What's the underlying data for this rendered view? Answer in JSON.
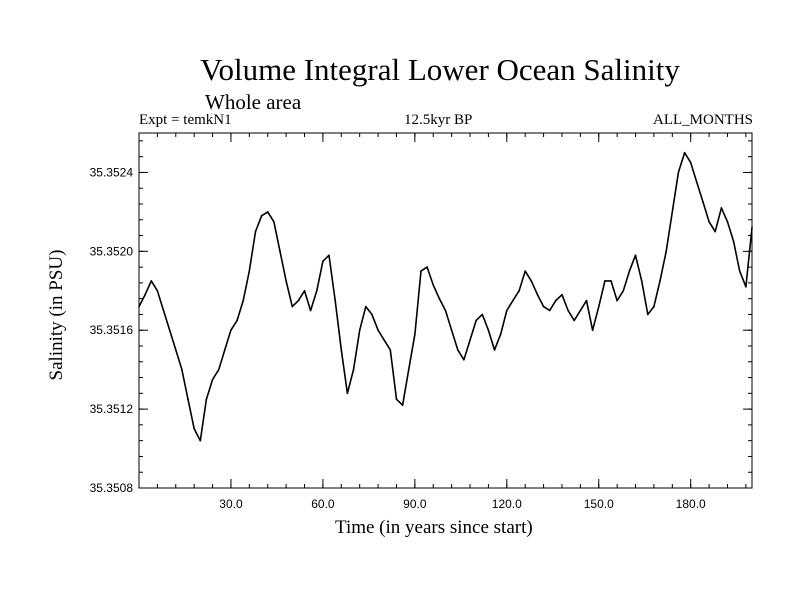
{
  "chart_data": {
    "type": "line",
    "title": "Volume Integral Lower Ocean Salinity",
    "subtitle": "Whole area",
    "experiment": "Expt = temkN1",
    "period": "12.5kyr BP",
    "months": "ALL_MONTHS",
    "xlabel": "Time (in years since start)",
    "ylabel": "Salinity (in PSU)",
    "xlim": [
      0,
      200
    ],
    "ylim": [
      35.3508,
      35.3526
    ],
    "xticks": [
      30,
      60,
      90,
      120,
      150,
      180
    ],
    "xtick_labels": [
      "30.0",
      "60.0",
      "90.0",
      "120.0",
      "150.0",
      "180.0"
    ],
    "yticks": [
      35.3508,
      35.3512,
      35.3516,
      35.352,
      35.3524
    ],
    "ytick_labels": [
      "35.3508",
      "35.3512",
      "35.3516",
      "35.3520",
      "35.3524"
    ],
    "series": [
      {
        "name": "Salinity",
        "color": "#000000",
        "x": [
          0,
          2,
          4,
          6,
          8,
          10,
          12,
          14,
          16,
          18,
          20,
          22,
          24,
          26,
          28,
          30,
          32,
          34,
          36,
          38,
          40,
          42,
          44,
          46,
          48,
          50,
          52,
          54,
          56,
          58,
          60,
          62,
          64,
          66,
          68,
          70,
          72,
          74,
          76,
          78,
          80,
          82,
          84,
          86,
          88,
          90,
          92,
          94,
          96,
          98,
          100,
          102,
          104,
          106,
          108,
          110,
          112,
          114,
          116,
          118,
          120,
          122,
          124,
          126,
          128,
          130,
          132,
          134,
          136,
          138,
          140,
          142,
          144,
          146,
          148,
          150,
          152,
          154,
          156,
          158,
          160,
          162,
          164,
          166,
          168,
          170,
          172,
          174,
          176,
          178,
          180,
          182,
          184,
          186,
          188,
          190,
          192,
          194,
          196,
          198,
          200
        ],
        "values": [
          35.35172,
          35.35178,
          35.35185,
          35.3518,
          35.3517,
          35.3516,
          35.3515,
          35.3514,
          35.35125,
          35.3511,
          35.35104,
          35.35125,
          35.35135,
          35.3514,
          35.3515,
          35.3516,
          35.35165,
          35.35175,
          35.3519,
          35.3521,
          35.35218,
          35.3522,
          35.35215,
          35.352,
          35.35185,
          35.35172,
          35.35175,
          35.3518,
          35.3517,
          35.3518,
          35.35195,
          35.35198,
          35.35175,
          35.3515,
          35.35128,
          35.3514,
          35.3516,
          35.35172,
          35.35168,
          35.3516,
          35.35155,
          35.3515,
          35.35125,
          35.35122,
          35.3514,
          35.35158,
          35.3519,
          35.35192,
          35.35183,
          35.35176,
          35.3517,
          35.3516,
          35.3515,
          35.35145,
          35.35155,
          35.35165,
          35.35168,
          35.3516,
          35.3515,
          35.35158,
          35.3517,
          35.35175,
          35.3518,
          35.3519,
          35.35185,
          35.35178,
          35.35172,
          35.3517,
          35.35175,
          35.35178,
          35.3517,
          35.35165,
          35.3517,
          35.35175,
          35.3516,
          35.35172,
          35.35185,
          35.35185,
          35.35175,
          35.3518,
          35.3519,
          35.35198,
          35.35185,
          35.35168,
          35.35172,
          35.35185,
          35.352,
          35.3522,
          35.3524,
          35.3525,
          35.35245,
          35.35235,
          35.35225,
          35.35215,
          35.3521,
          35.35222,
          35.35215,
          35.35205,
          35.3519,
          35.35182,
          35.35212
        ]
      }
    ]
  }
}
